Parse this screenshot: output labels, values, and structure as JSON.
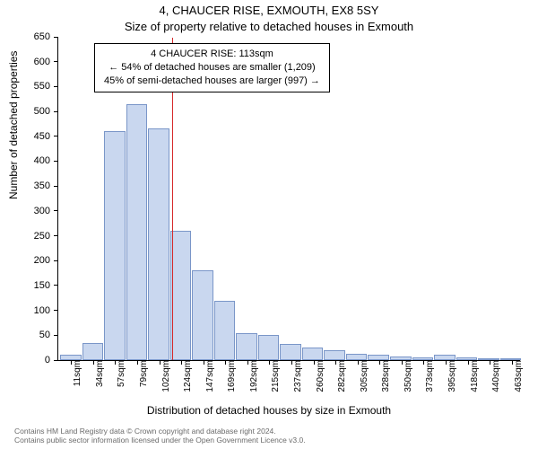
{
  "title_line1": "4, CHAUCER RISE, EXMOUTH, EX8 5SY",
  "title_line2": "Size of property relative to detached houses in Exmouth",
  "chart": {
    "type": "histogram",
    "bar_fill": "#c9d7ef",
    "bar_stroke": "#7a96c8",
    "background": "#ffffff",
    "axis_color": "#000000",
    "refline_color": "#d62728",
    "ymax": 650,
    "ytick_step": 50,
    "xtick_labels": [
      "11sqm",
      "34sqm",
      "57sqm",
      "79sqm",
      "102sqm",
      "124sqm",
      "147sqm",
      "169sqm",
      "192sqm",
      "215sqm",
      "237sqm",
      "260sqm",
      "282sqm",
      "305sqm",
      "328sqm",
      "350sqm",
      "373sqm",
      "395sqm",
      "418sqm",
      "440sqm",
      "463sqm"
    ],
    "values": [
      10,
      35,
      460,
      515,
      465,
      260,
      180,
      120,
      55,
      50,
      32,
      25,
      20,
      12,
      10,
      8,
      6,
      10,
      5,
      4,
      3
    ],
    "refline_index": 4.6,
    "ylabel": "Number of detached properties",
    "xlabel": "Distribution of detached houses by size in Exmouth",
    "tick_fontsize": 11,
    "label_fontsize": 12,
    "title_fontsize": 13
  },
  "annotation": {
    "line1": "4 CHAUCER RISE: 113sqm",
    "line2": "← 54% of detached houses are smaller (1,209)",
    "line3": "45% of semi-detached houses are larger (997) →"
  },
  "footer": {
    "line1": "Contains HM Land Registry data © Crown copyright and database right 2024.",
    "line2": "Contains public sector information licensed under the Open Government Licence v3.0."
  }
}
